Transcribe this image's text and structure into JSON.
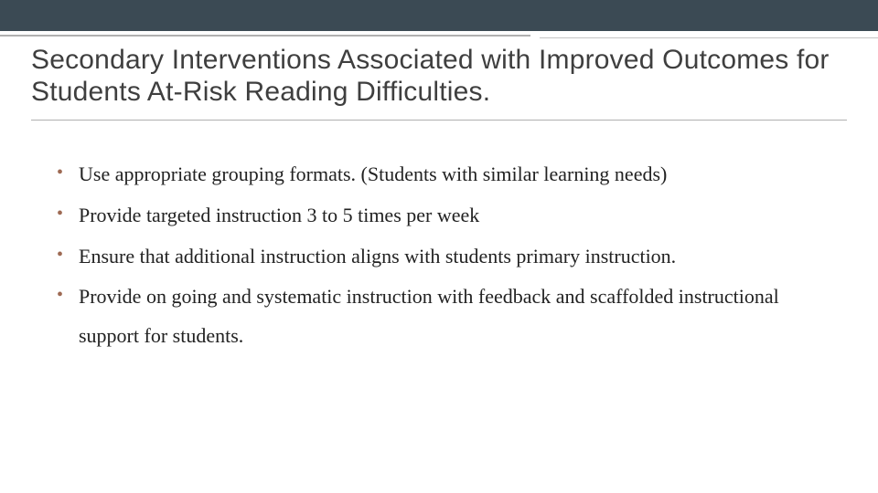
{
  "colors": {
    "topbar": "#3b4a54",
    "title_text": "#3f3f3f",
    "body_text": "#222222",
    "bullet": "#9e6a53",
    "divider": "#b0b0b0",
    "background": "#ffffff"
  },
  "typography": {
    "title_font": "Trebuchet MS",
    "title_fontsize_pt": 22,
    "body_font": "Georgia",
    "body_fontsize_pt": 17
  },
  "title": "Secondary Interventions Associated with Improved Outcomes for Students At-Risk Reading Difficulties.",
  "bullets": [
    "Use appropriate grouping formats. (Students with similar learning needs)",
    "Provide targeted instruction 3 to 5 times per week",
    "Ensure that additional instruction aligns with students primary instruction.",
    "Provide on going and systematic instruction with feedback and scaffolded instructional support for students."
  ]
}
